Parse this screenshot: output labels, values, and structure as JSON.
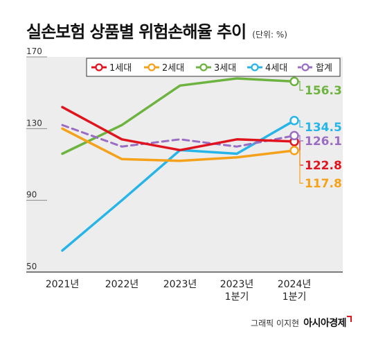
{
  "title": "실손보험 상품별 위험손해율 추이",
  "unit": "(단위: %)",
  "credit": {
    "author": "그래픽 이지현",
    "brand": "아시아경제"
  },
  "chart_data": {
    "type": "line",
    "categories": [
      [
        "2021년"
      ],
      [
        "2022년"
      ],
      [
        "2023년"
      ],
      [
        "2023년",
        "1분기"
      ],
      [
        "2024년",
        "1분기"
      ]
    ],
    "ylim": [
      50,
      170
    ],
    "yticks": [
      50,
      90,
      130,
      170
    ],
    "grid": false,
    "legend_position": "top",
    "series": [
      {
        "name": "1세대",
        "color": "#e0141e",
        "dashed": false,
        "values": [
          142,
          124,
          118,
          124,
          122.8
        ],
        "end_label": "122.8"
      },
      {
        "name": "2세대",
        "color": "#f5a21a",
        "dashed": false,
        "values": [
          130,
          113,
          112,
          114,
          117.8
        ],
        "end_label": "117.8"
      },
      {
        "name": "3세대",
        "color": "#6db33f",
        "dashed": false,
        "values": [
          116,
          132,
          154,
          158,
          156.3
        ],
        "end_label": "156.3"
      },
      {
        "name": "4세대",
        "color": "#27b5e8",
        "dashed": false,
        "values": [
          62,
          90,
          118,
          116,
          134.5
        ],
        "end_label": "134.5"
      },
      {
        "name": "합계",
        "color": "#9a6cc4",
        "dashed": true,
        "values": [
          132,
          120,
          124,
          120,
          126.1
        ],
        "end_label": "126.1"
      }
    ]
  }
}
